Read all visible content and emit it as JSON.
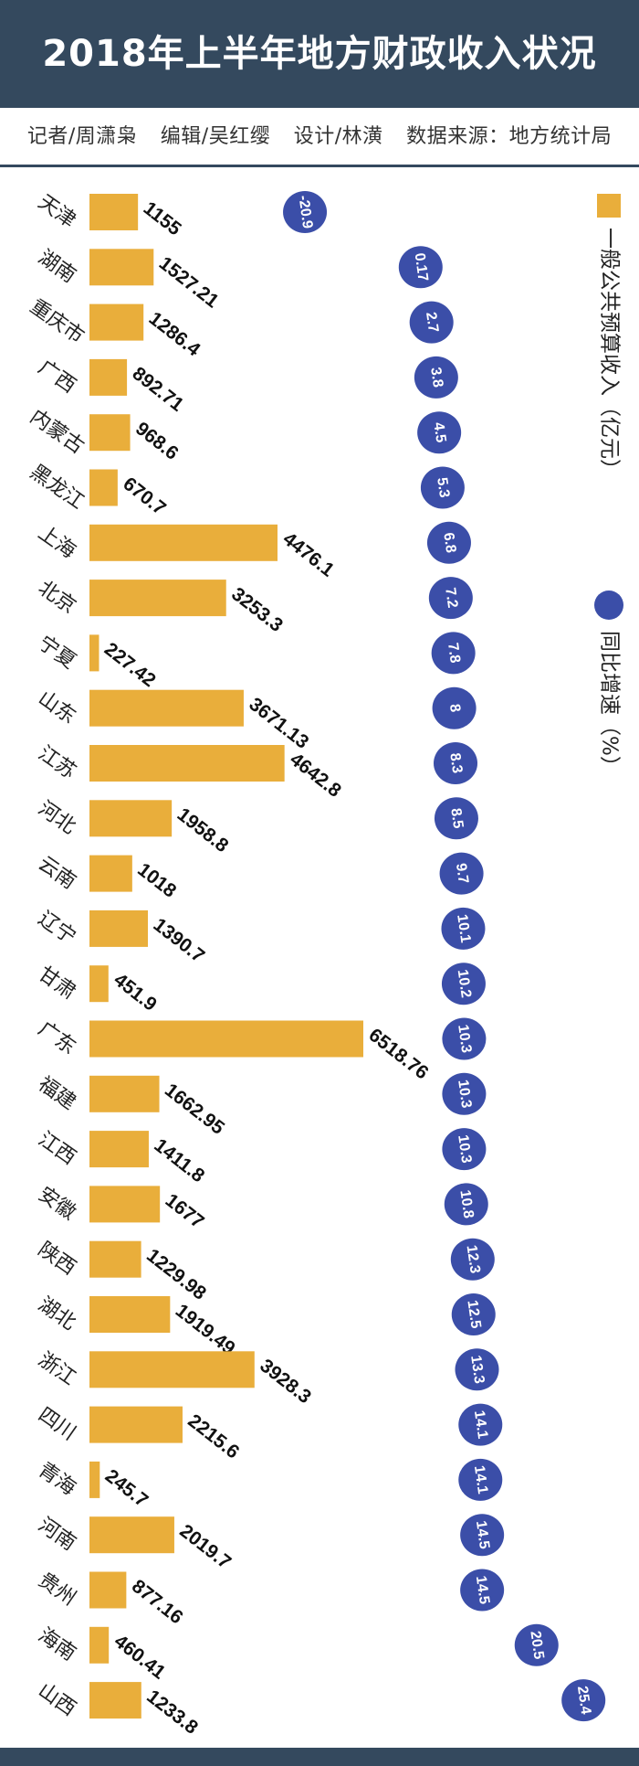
{
  "header": {
    "title": "2018年上半年地方财政收入状况"
  },
  "credits": {
    "reporter": "记者/周潇枭",
    "editor": "编辑/吴红缨",
    "design": "设计/林潢",
    "source": "数据来源：地方统计局"
  },
  "colors": {
    "bar": "#E9AE3B",
    "dot": "#3B4EA8",
    "header": "#34495E"
  },
  "chart_data": {
    "type": "bar",
    "orientation": "horizontal",
    "categories": [
      "天津",
      "湖南",
      "重庆市",
      "广西",
      "内蒙古",
      "黑龙江",
      "上海",
      "北京",
      "宁夏",
      "山东",
      "江苏",
      "河北",
      "云南",
      "辽宁",
      "甘肃",
      "广东",
      "福建",
      "江西",
      "安徽",
      "陕西",
      "湖北",
      "浙江",
      "四川",
      "青海",
      "河南",
      "贵州",
      "海南",
      "山西"
    ],
    "series": [
      {
        "name": "一般公共预算收入（亿元）",
        "type": "bar",
        "values": [
          1155,
          1527.21,
          1286.4,
          892.71,
          968.6,
          670.7,
          4476.1,
          3253.3,
          227.42,
          3671.13,
          4642.8,
          1958.8,
          1018,
          1390.7,
          451.9,
          6518.76,
          1662.95,
          1411.8,
          1677,
          1229.98,
          1919.49,
          3928.3,
          2215.6,
          245.7,
          2019.7,
          877.16,
          460.41,
          1233.8
        ],
        "labels": [
          "1155",
          "1527.21",
          "1286.4",
          "892.71",
          "968.6",
          "670.7",
          "4476.1",
          "3253.3",
          "227.42",
          "3671.13",
          "4642.8",
          "1958.8",
          "1018",
          "1390.7",
          "451.9",
          "6518.76",
          "1662.95",
          "1411.8",
          "1677",
          "1229.98",
          "1919.49",
          "3928.3",
          "2215.6",
          "245.7",
          "2019.7",
          "877.16",
          "460.41",
          "1233.8"
        ]
      },
      {
        "name": "同比增速（%）",
        "type": "dot",
        "values": [
          -20.9,
          0.17,
          2.7,
          3.8,
          4.5,
          5.3,
          6.8,
          7.2,
          7.8,
          8,
          8.3,
          8.5,
          9.7,
          10.1,
          10.2,
          10.3,
          10.3,
          10.3,
          10.8,
          12.3,
          12.5,
          13.3,
          14.1,
          14.1,
          14.5,
          14.5,
          20.5,
          25.4
        ],
        "labels": [
          "-20.9",
          "0.17",
          "2.7",
          "3.8",
          "4.5",
          "5.3",
          "6.8",
          "7.2",
          "7.8",
          "8",
          "8.3",
          "8.5",
          "9.7",
          "10.1",
          "10.2",
          "10.3",
          "10.3",
          "10.3",
          "10.8",
          "12.3",
          "12.5",
          "13.3",
          "14.1",
          "14.1",
          "14.5",
          "14.5",
          "20.5",
          "25.4"
        ]
      }
    ],
    "legend": {
      "position": "right",
      "items": [
        "一般公共预算收入（亿元）",
        "同比增速（%）"
      ]
    }
  }
}
